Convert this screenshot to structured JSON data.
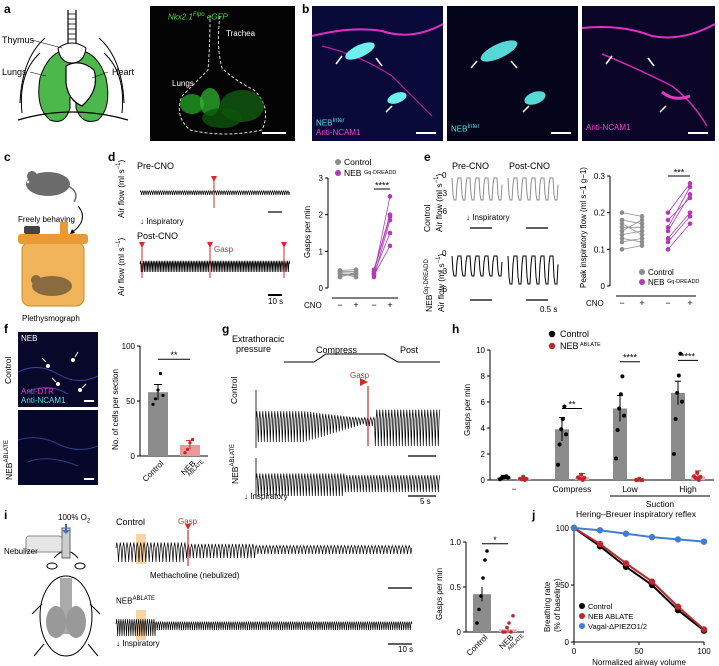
{
  "panel_labels": {
    "a": "a",
    "b": "b",
    "c": "c",
    "d": "d",
    "e": "e",
    "f": "f",
    "g": "g",
    "h": "h",
    "i": "i",
    "j": "j"
  },
  "panel_a": {
    "thymus": "Thymus",
    "lungs": "Lungs",
    "heart": "Heart",
    "genotype_main": "Nkx2.1",
    "genotype_sup": "Flpo",
    "reporter": "eGFP",
    "trachea": "Trachea",
    "lungs_img": "Lungs"
  },
  "panel_b": {
    "neb_main": "NEB",
    "neb_sup": "Inter",
    "ncam": "Anti-NCAM1"
  },
  "panel_c": {
    "freely": "Freely behaving",
    "pleth": "Plethysmograph"
  },
  "panel_d": {
    "pre": "Pre-CNO",
    "post": "Post-CNO",
    "inspiratory": "Inspiratory",
    "gasp": "Gasp",
    "ylabel": "Air flow (ml s",
    "ysup": "−1",
    "yclose": ")",
    "time_scale": "10 s",
    "chart": {
      "legend": [
        {
          "name": "Control",
          "color": "#8c8c8c"
        },
        {
          "name_main": "NEB",
          "name_sup": "Gq-DREADD",
          "color": "#b23ab8"
        }
      ],
      "ylabel": "Gasps per min",
      "yticks": [
        "0",
        "1",
        "2",
        "3"
      ],
      "cno_label": "CNO",
      "x_ticks": [
        "−",
        "+",
        "−",
        "+"
      ],
      "stars": "****"
    }
  },
  "panel_e": {
    "pre": "Pre-CNO",
    "post": "Post-CNO",
    "inspiratory": "Inspiratory",
    "control": "Control",
    "airflow": "Air flow (ml s",
    "ysup": "−1",
    "yclose": ")",
    "neb_main": "NEB",
    "neb_sup": "Gq-DREADD",
    "yticks": [
      "0",
      "−3",
      "−6"
    ],
    "time_scale": "0.5 s",
    "chart": {
      "ylabel": "Peak inspiratory flow (ml s",
      "ysup": "−1",
      "g": "g",
      "gsup": "−1",
      "yclose": ")",
      "yticks": [
        "0",
        "0.1",
        "0.2",
        "0.3"
      ],
      "stars": "***",
      "legend_control": "Control",
      "legend_neb_main": "NEB",
      "legend_neb_sup": "Gq-DREADD",
      "cno_label": "CNO",
      "x_ticks": [
        "−",
        "+",
        "−",
        "+"
      ]
    }
  },
  "panel_f": {
    "neb": "NEB",
    "anti_dtr": "Anti-DTR",
    "anti_ncam": "Anti-NCAM1",
    "control": "Control",
    "ablate_main": "NEB",
    "ablate_sup": "ABLATE",
    "chart": {
      "ylabel": "No. of cells per section",
      "yticks": [
        "0",
        "50",
        "100"
      ],
      "categories_control": "Control",
      "categories_ablate_main": "NEB",
      "categories_ablate_sup": "ABLATE",
      "stars": "**"
    }
  },
  "panel_g": {
    "extrathoracic": "Extrathoracic",
    "pressure": "pressure",
    "compress": "Compress",
    "post": "Post",
    "gasp": "Gasp",
    "control": "Control",
    "ablate_main": "NEB",
    "ablate_sup": "ABLATE",
    "inspiratory": "Inspiratory",
    "time_scale": "5 s"
  },
  "panel_h": {
    "legend_control": "Control",
    "legend_ablate_main": "NEB",
    "legend_ablate_sup": "ABLATE",
    "ylabel": "Gasps per min",
    "yticks": [
      "0",
      "2",
      "4",
      "6",
      "8",
      "10"
    ],
    "categories": [
      "−",
      "Compress",
      "Low",
      "High"
    ],
    "suction": "Suction",
    "stars": [
      "**",
      "****",
      "****"
    ]
  },
  "panel_i": {
    "o2": "100% O",
    "o2sub": "2",
    "nebulizer": "Nebulizer",
    "control": "Control",
    "gasp": "Gasp",
    "methacholine": "Methacholine (nebulized)",
    "ablate_main": "NEB",
    "ablate_sup": "ABLATE",
    "inspiratory": "Inspiratory",
    "time_scale": "10 s",
    "chart": {
      "ylabel": "Gasps per min",
      "yticks": [
        "0",
        "0.5",
        "1.0"
      ],
      "categories_control": "Control",
      "categories_ablate_main": "NEB",
      "categories_ablate_sup": "ABLATE",
      "stars": "*"
    }
  },
  "chart_data": [
    {
      "type": "line",
      "panel": "d-right",
      "ylabel": "Gasps per min",
      "ylim": [
        0,
        3
      ],
      "series": [
        {
          "name": "Control",
          "color": "#8c8c8c",
          "pre": [
            0.38,
            0.42,
            0.45,
            0.3,
            0.4,
            0.48,
            0.35
          ],
          "post": [
            0.35,
            0.4,
            0.45,
            0.42,
            0.3,
            0.5,
            0.38
          ]
        },
        {
          "name": "NEB Gq-DREADD",
          "color": "#b23ab8",
          "pre": [
            0.35,
            0.4,
            0.3,
            0.45,
            0.5,
            0.38
          ],
          "post": [
            1.15,
            1.5,
            1.85,
            1.95,
            2.0,
            2.5
          ]
        }
      ]
    },
    {
      "type": "line",
      "panel": "e-right",
      "ylabel": "Peak inspiratory flow (ml s−1 g−1)",
      "ylim": [
        0,
        0.3
      ],
      "series": [
        {
          "name": "Control",
          "color": "#8c8c8c",
          "pre": [
            0.2,
            0.18,
            0.17,
            0.15,
            0.14,
            0.13,
            0.12,
            0.1,
            0.16
          ],
          "post": [
            0.19,
            0.17,
            0.14,
            0.18,
            0.15,
            0.12,
            0.13,
            0.11,
            0.16
          ]
        },
        {
          "name": "NEB Gq-DREADD",
          "color": "#b23ab8",
          "pre": [
            0.2,
            0.16,
            0.15,
            0.13,
            0.12,
            0.1,
            0.18
          ],
          "post": [
            0.28,
            0.27,
            0.25,
            0.2,
            0.19,
            0.17,
            0.24
          ]
        }
      ]
    },
    {
      "type": "bar",
      "panel": "f-right",
      "ylabel": "No. of cells per section",
      "ylim": [
        0,
        100
      ],
      "categories": [
        "Control",
        "NEB ABLATE"
      ],
      "values": [
        58,
        10
      ],
      "errors": [
        7,
        4
      ],
      "points": [
        [
          47,
          52,
          60,
          75,
          55
        ],
        [
          3,
          6,
          12,
          15
        ]
      ]
    },
    {
      "type": "bar",
      "panel": "h",
      "ylabel": "Gasps per min",
      "ylim": [
        0,
        10
      ],
      "categories": [
        "−",
        "Compress",
        "Low",
        "High"
      ],
      "series": [
        {
          "name": "Control",
          "color": "#000000",
          "values": [
            0.2,
            3.9,
            5.5,
            6.7
          ],
          "errors": [
            0.15,
            0.9,
            1.0,
            0.9
          ]
        },
        {
          "name": "NEB ABLATE",
          "color": "#c0272d",
          "values": [
            0.1,
            0.2,
            0.0,
            0.3
          ],
          "errors": [
            0.1,
            0.3,
            0.05,
            0.4
          ]
        }
      ]
    },
    {
      "type": "bar",
      "panel": "i-right",
      "ylabel": "Gasps per min",
      "ylim": [
        0,
        1.0
      ],
      "categories": [
        "Control",
        "NEB ABLATE"
      ],
      "values": [
        0.42,
        0.03
      ],
      "errors": [
        0.08,
        0.03
      ]
    },
    {
      "type": "line",
      "panel": "j",
      "title": "Hering–Breuer inspiratory reflex",
      "xlabel": "Normalized airway volume",
      "ylabel": "Breathing rate (% of baseline)",
      "xlim": [
        0,
        100
      ],
      "ylim": [
        0,
        100
      ],
      "xticks": [
        "0",
        "50",
        "100"
      ],
      "yticks": [
        "0",
        "50",
        "100"
      ],
      "series": [
        {
          "name": "Control",
          "color": "#000000",
          "x": [
            0,
            20,
            40,
            60,
            80,
            100
          ],
          "y": [
            100,
            84,
            66,
            50,
            28,
            10
          ]
        },
        {
          "name": "NEB ABLATE",
          "color": "#c0272d",
          "x": [
            0,
            20,
            40,
            60,
            80,
            100
          ],
          "y": [
            100,
            86,
            69,
            53,
            31,
            11
          ]
        },
        {
          "name": "Vagal-ΔPIEZO1/2",
          "color": "#3f7fd0",
          "x": [
            0,
            20,
            40,
            60,
            80,
            100
          ],
          "y": [
            100,
            98,
            95,
            92,
            90,
            88
          ]
        }
      ]
    }
  ]
}
